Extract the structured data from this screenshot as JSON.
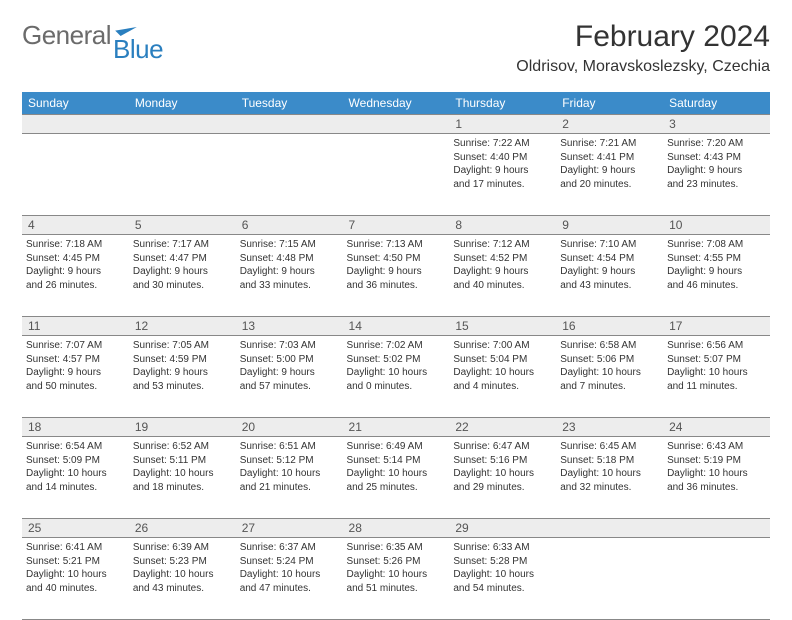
{
  "brand": {
    "name1": "General",
    "name2": "Blue"
  },
  "title": "February 2024",
  "location": "Oldrisov, Moravskoslezsky, Czechia",
  "colors": {
    "header_bg": "#3b8bc9",
    "header_fg": "#ffffff",
    "daynum_bg": "#ededed",
    "daynum_fg": "#555555",
    "border": "#888888",
    "logo_gray": "#6b6b6b",
    "logo_blue": "#2a7fbf"
  },
  "day_headers": [
    "Sunday",
    "Monday",
    "Tuesday",
    "Wednesday",
    "Thursday",
    "Friday",
    "Saturday"
  ],
  "weeks": [
    [
      null,
      null,
      null,
      null,
      {
        "n": "1",
        "sr": "Sunrise: 7:22 AM",
        "ss": "Sunset: 4:40 PM",
        "d1": "Daylight: 9 hours",
        "d2": "and 17 minutes."
      },
      {
        "n": "2",
        "sr": "Sunrise: 7:21 AM",
        "ss": "Sunset: 4:41 PM",
        "d1": "Daylight: 9 hours",
        "d2": "and 20 minutes."
      },
      {
        "n": "3",
        "sr": "Sunrise: 7:20 AM",
        "ss": "Sunset: 4:43 PM",
        "d1": "Daylight: 9 hours",
        "d2": "and 23 minutes."
      }
    ],
    [
      {
        "n": "4",
        "sr": "Sunrise: 7:18 AM",
        "ss": "Sunset: 4:45 PM",
        "d1": "Daylight: 9 hours",
        "d2": "and 26 minutes."
      },
      {
        "n": "5",
        "sr": "Sunrise: 7:17 AM",
        "ss": "Sunset: 4:47 PM",
        "d1": "Daylight: 9 hours",
        "d2": "and 30 minutes."
      },
      {
        "n": "6",
        "sr": "Sunrise: 7:15 AM",
        "ss": "Sunset: 4:48 PM",
        "d1": "Daylight: 9 hours",
        "d2": "and 33 minutes."
      },
      {
        "n": "7",
        "sr": "Sunrise: 7:13 AM",
        "ss": "Sunset: 4:50 PM",
        "d1": "Daylight: 9 hours",
        "d2": "and 36 minutes."
      },
      {
        "n": "8",
        "sr": "Sunrise: 7:12 AM",
        "ss": "Sunset: 4:52 PM",
        "d1": "Daylight: 9 hours",
        "d2": "and 40 minutes."
      },
      {
        "n": "9",
        "sr": "Sunrise: 7:10 AM",
        "ss": "Sunset: 4:54 PM",
        "d1": "Daylight: 9 hours",
        "d2": "and 43 minutes."
      },
      {
        "n": "10",
        "sr": "Sunrise: 7:08 AM",
        "ss": "Sunset: 4:55 PM",
        "d1": "Daylight: 9 hours",
        "d2": "and 46 minutes."
      }
    ],
    [
      {
        "n": "11",
        "sr": "Sunrise: 7:07 AM",
        "ss": "Sunset: 4:57 PM",
        "d1": "Daylight: 9 hours",
        "d2": "and 50 minutes."
      },
      {
        "n": "12",
        "sr": "Sunrise: 7:05 AM",
        "ss": "Sunset: 4:59 PM",
        "d1": "Daylight: 9 hours",
        "d2": "and 53 minutes."
      },
      {
        "n": "13",
        "sr": "Sunrise: 7:03 AM",
        "ss": "Sunset: 5:00 PM",
        "d1": "Daylight: 9 hours",
        "d2": "and 57 minutes."
      },
      {
        "n": "14",
        "sr": "Sunrise: 7:02 AM",
        "ss": "Sunset: 5:02 PM",
        "d1": "Daylight: 10 hours",
        "d2": "and 0 minutes."
      },
      {
        "n": "15",
        "sr": "Sunrise: 7:00 AM",
        "ss": "Sunset: 5:04 PM",
        "d1": "Daylight: 10 hours",
        "d2": "and 4 minutes."
      },
      {
        "n": "16",
        "sr": "Sunrise: 6:58 AM",
        "ss": "Sunset: 5:06 PM",
        "d1": "Daylight: 10 hours",
        "d2": "and 7 minutes."
      },
      {
        "n": "17",
        "sr": "Sunrise: 6:56 AM",
        "ss": "Sunset: 5:07 PM",
        "d1": "Daylight: 10 hours",
        "d2": "and 11 minutes."
      }
    ],
    [
      {
        "n": "18",
        "sr": "Sunrise: 6:54 AM",
        "ss": "Sunset: 5:09 PM",
        "d1": "Daylight: 10 hours",
        "d2": "and 14 minutes."
      },
      {
        "n": "19",
        "sr": "Sunrise: 6:52 AM",
        "ss": "Sunset: 5:11 PM",
        "d1": "Daylight: 10 hours",
        "d2": "and 18 minutes."
      },
      {
        "n": "20",
        "sr": "Sunrise: 6:51 AM",
        "ss": "Sunset: 5:12 PM",
        "d1": "Daylight: 10 hours",
        "d2": "and 21 minutes."
      },
      {
        "n": "21",
        "sr": "Sunrise: 6:49 AM",
        "ss": "Sunset: 5:14 PM",
        "d1": "Daylight: 10 hours",
        "d2": "and 25 minutes."
      },
      {
        "n": "22",
        "sr": "Sunrise: 6:47 AM",
        "ss": "Sunset: 5:16 PM",
        "d1": "Daylight: 10 hours",
        "d2": "and 29 minutes."
      },
      {
        "n": "23",
        "sr": "Sunrise: 6:45 AM",
        "ss": "Sunset: 5:18 PM",
        "d1": "Daylight: 10 hours",
        "d2": "and 32 minutes."
      },
      {
        "n": "24",
        "sr": "Sunrise: 6:43 AM",
        "ss": "Sunset: 5:19 PM",
        "d1": "Daylight: 10 hours",
        "d2": "and 36 minutes."
      }
    ],
    [
      {
        "n": "25",
        "sr": "Sunrise: 6:41 AM",
        "ss": "Sunset: 5:21 PM",
        "d1": "Daylight: 10 hours",
        "d2": "and 40 minutes."
      },
      {
        "n": "26",
        "sr": "Sunrise: 6:39 AM",
        "ss": "Sunset: 5:23 PM",
        "d1": "Daylight: 10 hours",
        "d2": "and 43 minutes."
      },
      {
        "n": "27",
        "sr": "Sunrise: 6:37 AM",
        "ss": "Sunset: 5:24 PM",
        "d1": "Daylight: 10 hours",
        "d2": "and 47 minutes."
      },
      {
        "n": "28",
        "sr": "Sunrise: 6:35 AM",
        "ss": "Sunset: 5:26 PM",
        "d1": "Daylight: 10 hours",
        "d2": "and 51 minutes."
      },
      {
        "n": "29",
        "sr": "Sunrise: 6:33 AM",
        "ss": "Sunset: 5:28 PM",
        "d1": "Daylight: 10 hours",
        "d2": "and 54 minutes."
      },
      null,
      null
    ]
  ]
}
